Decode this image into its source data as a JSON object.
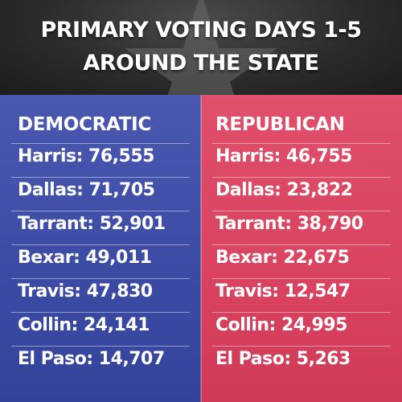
{
  "title": {
    "line1": "PRIMARY VOTING DAYS 1-5",
    "line2": "AROUND THE STATE"
  },
  "colors": {
    "democratic": "#3b4aa3",
    "republican": "#d9435f",
    "header": "#2c2c2c",
    "text": "#ffffff"
  },
  "icons": {
    "header": "star-icon"
  },
  "democratic": {
    "heading": "DEMOCRATIC",
    "rows": [
      "Harris: 76,555",
      "Dallas: 71,705",
      "Tarrant: 52,901",
      "Bexar: 49,011",
      "Travis: 47,830",
      "Collin: 24,141",
      "El Paso: 14,707"
    ]
  },
  "republican": {
    "heading": "REPUBLICAN",
    "rows": [
      "Harris: 46,755",
      "Dallas: 23,822",
      "Tarrant: 38,790",
      "Bexar: 22,675",
      "Travis: 12,547",
      "Collin: 24,995",
      "El Paso: 5,263"
    ]
  }
}
